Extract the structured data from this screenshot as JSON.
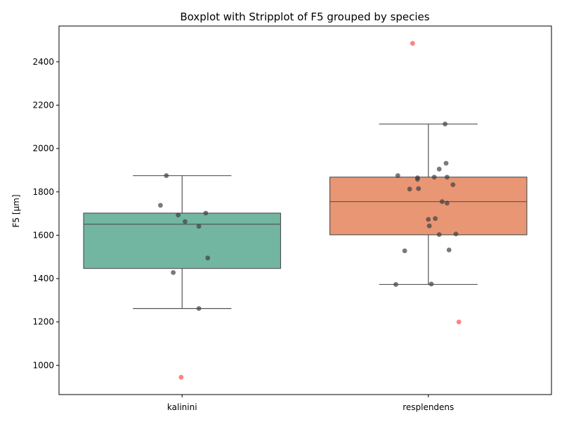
{
  "chart_data": {
    "type": "box",
    "title": "Boxplot with Stripplot of F5 grouped by species",
    "xlabel": "",
    "ylabel": "F5 [μm]",
    "ylim": [
      865,
      2565
    ],
    "yticks": [
      1000,
      1200,
      1400,
      1600,
      1800,
      2000,
      2200,
      2400
    ],
    "grid": false,
    "categories": [
      "kalinini",
      "resplendens"
    ],
    "boxes": [
      {
        "category": "kalinini",
        "color": "#72b6a1",
        "whisker_low": 1262,
        "q1": 1447,
        "median": 1651,
        "q3": 1702,
        "whisker_high": 1875,
        "points": [
          1875,
          1738,
          1693,
          1702,
          1663,
          1641,
          1495,
          1428,
          1262
        ],
        "point_offsets": [
          -0.16,
          -0.22,
          -0.04,
          0.24,
          0.03,
          0.17,
          0.26,
          -0.09,
          0.17
        ],
        "outliers": [
          945
        ],
        "outlier_offsets": [
          -0.01
        ]
      },
      {
        "category": "resplendens",
        "color": "#e99675",
        "whisker_low": 1373,
        "q1": 1602,
        "median": 1755,
        "q3": 1868,
        "whisker_high": 2113,
        "points": [
          2113,
          1932,
          1905,
          1875,
          1868,
          1868,
          1865,
          1858,
          1833,
          1815,
          1813,
          1755,
          1748,
          1677,
          1673,
          1643,
          1606,
          1603,
          1532,
          1528,
          1375,
          1373
        ],
        "point_offsets": [
          0.17,
          0.18,
          0.11,
          -0.31,
          0.06,
          0.19,
          -0.11,
          -0.11,
          0.25,
          -0.1,
          -0.19,
          0.14,
          0.19,
          0.07,
          0.0,
          0.01,
          0.28,
          0.11,
          0.21,
          -0.24,
          0.03,
          -0.33
        ],
        "outliers": [
          2485,
          1200
        ],
        "outlier_offsets": [
          -0.16,
          0.31
        ]
      }
    ],
    "point_color": "#404040",
    "outlier_color": "#ff7b7b"
  }
}
